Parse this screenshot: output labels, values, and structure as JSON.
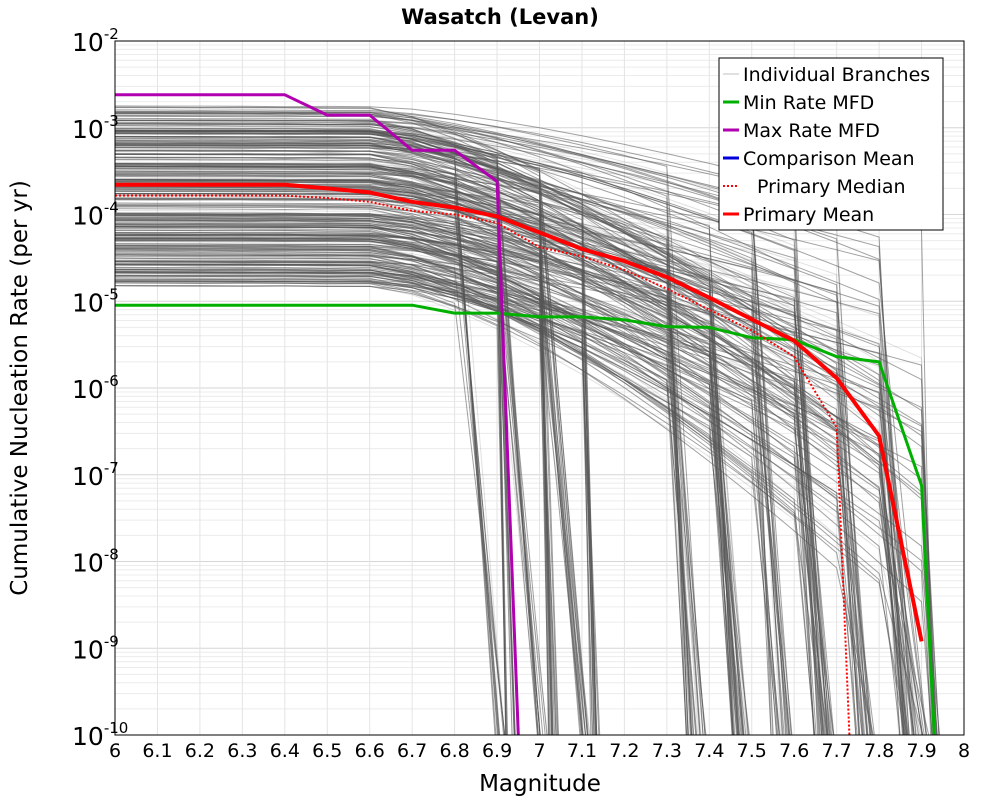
{
  "chart_data": {
    "type": "line",
    "title": "Wasatch (Levan)",
    "xlabel": "Magnitude",
    "ylabel": "Cumulative Nucleation Rate (per yr)",
    "xlim": [
      6,
      8
    ],
    "ylim": [
      1e-10,
      0.01
    ],
    "yscale": "log",
    "grid": true,
    "x_ticks": [
      {
        "v": 6.0,
        "label": "6"
      },
      {
        "v": 6.1,
        "label": "6.1"
      },
      {
        "v": 6.2,
        "label": "6.2"
      },
      {
        "v": 6.3,
        "label": "6.3"
      },
      {
        "v": 6.4,
        "label": "6.4"
      },
      {
        "v": 6.5,
        "label": "6.5"
      },
      {
        "v": 6.6,
        "label": "6.6"
      },
      {
        "v": 6.7,
        "label": "6.7"
      },
      {
        "v": 6.8,
        "label": "6.8"
      },
      {
        "v": 6.9,
        "label": "6.9"
      },
      {
        "v": 7.0,
        "label": "7"
      },
      {
        "v": 7.1,
        "label": "7.1"
      },
      {
        "v": 7.2,
        "label": "7.2"
      },
      {
        "v": 7.3,
        "label": "7.3"
      },
      {
        "v": 7.4,
        "label": "7.4"
      },
      {
        "v": 7.5,
        "label": "7.5"
      },
      {
        "v": 7.6,
        "label": "7.6"
      },
      {
        "v": 7.7,
        "label": "7.7"
      },
      {
        "v": 7.8,
        "label": "7.8"
      },
      {
        "v": 7.9,
        "label": "7.9"
      },
      {
        "v": 8.0,
        "label": "8"
      }
    ],
    "y_ticks": [
      {
        "exp": -10,
        "base": "10",
        "sup": "-10"
      },
      {
        "exp": -9,
        "base": "10",
        "sup": "-9"
      },
      {
        "exp": -8,
        "base": "10",
        "sup": "-8"
      },
      {
        "exp": -7,
        "base": "10",
        "sup": "-7"
      },
      {
        "exp": -6,
        "base": "10",
        "sup": "-6"
      },
      {
        "exp": -5,
        "base": "10",
        "sup": "-5"
      },
      {
        "exp": -4,
        "base": "10",
        "sup": "-4"
      },
      {
        "exp": -3,
        "base": "10",
        "sup": "-3"
      },
      {
        "exp": -2,
        "base": "10",
        "sup": "-2"
      }
    ],
    "legend_position": "top-right",
    "legend": [
      {
        "label": "Individual Branches",
        "color": "#c0c0c0",
        "style": "solid"
      },
      {
        "label": "Min Rate MFD",
        "color": "#00b000",
        "style": "solid"
      },
      {
        "label": "Max Rate MFD",
        "color": "#b000b0",
        "style": "solid"
      },
      {
        "label": "Comparison Mean",
        "color": "#0000dd",
        "style": "solid"
      },
      {
        "label": "Primary Median",
        "color": "#ff0000",
        "style": "dotted"
      },
      {
        "label": "Primary Mean",
        "color": "#ff0000",
        "style": "solid"
      }
    ],
    "series": [
      {
        "name": "Min Rate MFD",
        "color": "#00b000",
        "x": [
          6.0,
          6.1,
          6.2,
          6.3,
          6.4,
          6.5,
          6.6,
          6.7,
          6.8,
          6.9,
          7.0,
          7.1,
          7.2,
          7.3,
          7.4,
          7.5,
          7.6,
          7.7,
          7.8,
          7.9,
          7.93
        ],
        "y": [
          9e-06,
          9e-06,
          9e-06,
          9e-06,
          9e-06,
          9e-06,
          9e-06,
          9e-06,
          7.3e-06,
          7.3e-06,
          6.6e-06,
          6.6e-06,
          6.1e-06,
          5.1e-06,
          5e-06,
          3.8e-06,
          3.6e-06,
          2.3e-06,
          2e-06,
          7.5e-08,
          1e-10
        ]
      },
      {
        "name": "Max Rate MFD",
        "color": "#b000b0",
        "x": [
          6.0,
          6.1,
          6.2,
          6.3,
          6.4,
          6.5,
          6.6,
          6.7,
          6.8,
          6.9,
          6.95
        ],
        "y": [
          0.0024,
          0.0024,
          0.0024,
          0.0024,
          0.0024,
          0.0014,
          0.0014,
          0.00055,
          0.00055,
          0.00024,
          1e-10
        ]
      },
      {
        "name": "Primary Mean",
        "color": "#ff0000",
        "x": [
          6.0,
          6.1,
          6.2,
          6.3,
          6.4,
          6.5,
          6.6,
          6.7,
          6.8,
          6.9,
          7.0,
          7.1,
          7.2,
          7.3,
          7.4,
          7.5,
          7.6,
          7.7,
          7.8,
          7.9
        ],
        "y": [
          0.00022,
          0.00022,
          0.00022,
          0.00022,
          0.00022,
          0.0002,
          0.00018,
          0.00014,
          0.00012,
          9.5e-05,
          6.2e-05,
          4e-05,
          2.9e-05,
          1.9e-05,
          1.1e-05,
          6.2e-06,
          3.5e-06,
          1.3e-06,
          2.8e-07,
          1.2e-09
        ]
      },
      {
        "name": "Primary Median",
        "color": "#ff0000",
        "x": [
          6.0,
          6.1,
          6.2,
          6.3,
          6.4,
          6.5,
          6.6,
          6.7,
          6.8,
          6.9,
          7.0,
          7.1,
          7.2,
          7.3,
          7.4,
          7.5,
          7.6,
          7.7,
          7.73
        ],
        "y": [
          0.000165,
          0.000165,
          0.000165,
          0.000165,
          0.000165,
          0.000155,
          0.00014,
          0.00011,
          0.0001,
          8e-05,
          4.2e-05,
          3.3e-05,
          2.3e-05,
          1.4e-05,
          8e-06,
          4.6e-06,
          2.3e-06,
          3.5e-07,
          1e-10
        ]
      }
    ],
    "branch_envelope": {
      "name": "Individual Branches",
      "color": "#555555",
      "plateau_range": [
        1.5e-05,
        0.0018
      ],
      "cutoff_magnitudes": [
        6.9,
        7.0,
        7.1,
        7.35,
        7.45,
        7.55,
        7.65,
        7.75,
        7.85,
        7.9
      ],
      "count": 320
    }
  }
}
